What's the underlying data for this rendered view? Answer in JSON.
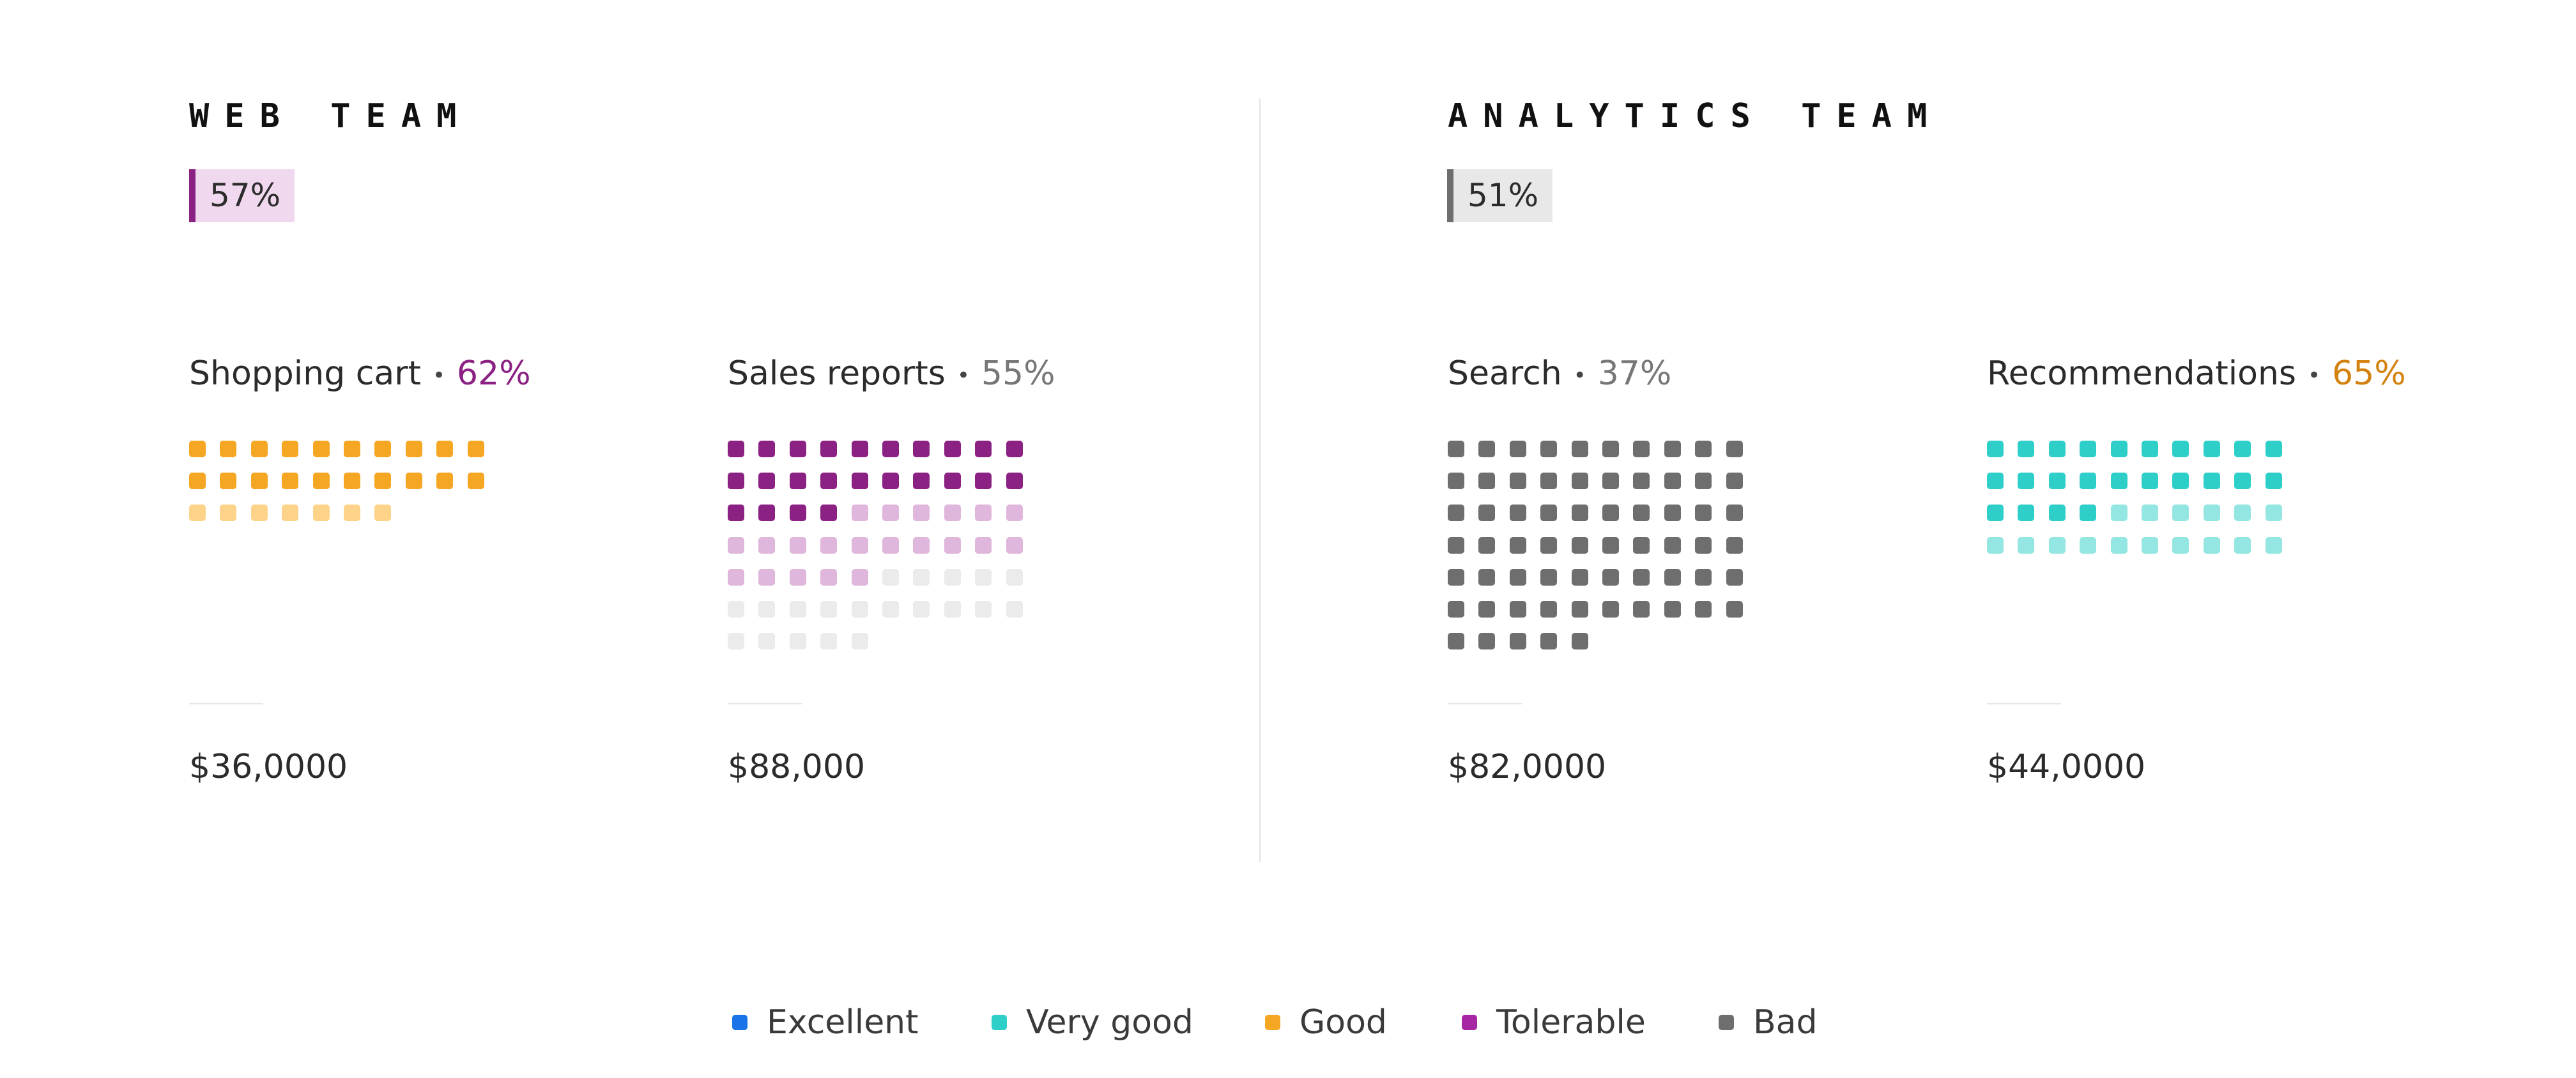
{
  "teams": [
    {
      "name": "WEB TEAM",
      "score": "57%",
      "projects": [
        {
          "name": "Shopping cart",
          "percent": "62%",
          "budget": "$36,0000"
        },
        {
          "name": "Sales reports",
          "percent": "55%",
          "budget": "$88,000"
        }
      ]
    },
    {
      "name": "ANALYTICS TEAM",
      "score": "51%",
      "projects": [
        {
          "name": "Search",
          "percent": "37%",
          "budget": "$82,0000"
        },
        {
          "name": "Recommendations",
          "percent": "65%",
          "budget": "$44,0000"
        }
      ]
    }
  ],
  "legend": [
    {
      "label": "Excellent",
      "color": "#1a73e8"
    },
    {
      "label": "Very good",
      "color": "#2ecfc9"
    },
    {
      "label": "Good",
      "color": "#f5a623"
    },
    {
      "label": "Tolerable",
      "color": "#a626a4"
    },
    {
      "label": "Bad",
      "color": "#6e6e6e"
    }
  ],
  "chart_data": {
    "type": "waffle",
    "unit": "one square per unit",
    "panels": [
      {
        "team": "WEB TEAM",
        "project": "Shopping cart",
        "percent": 62,
        "percent_color": "#8b2283",
        "segments": [
          {
            "count": 20,
            "color": "#f5a623"
          },
          {
            "count": 7,
            "color": "#fcd389"
          }
        ]
      },
      {
        "team": "WEB TEAM",
        "project": "Sales reports",
        "percent": 55,
        "percent_color": "#777777",
        "segments": [
          {
            "count": 24,
            "color": "#8b2283"
          },
          {
            "count": 21,
            "color": "#dfb6dc"
          },
          {
            "count": 20,
            "color": "#ebebeb"
          }
        ]
      },
      {
        "team": "ANALYTICS TEAM",
        "project": "Search",
        "percent": 37,
        "percent_color": "#777777",
        "segments": [
          {
            "count": 65,
            "color": "#6e6e6e"
          }
        ]
      },
      {
        "team": "ANALYTICS TEAM",
        "project": "Recommendations",
        "percent": 65,
        "percent_color": "#d4820f",
        "segments": [
          {
            "count": 24,
            "color": "#2ecfc9"
          },
          {
            "count": 16,
            "color": "#94e6e2"
          }
        ]
      }
    ]
  }
}
